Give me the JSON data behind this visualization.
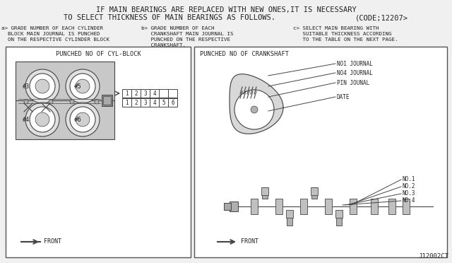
{
  "bg_color": "#f0f0f0",
  "line_color": "#444444",
  "text_color": "#222222",
  "title_line1": "IF MAIN BEARINGS ARE REPLACED WITH NEW ONES,IT IS NECESSARY",
  "title_line2": "TO SELECT THICKNESS OF MAIN BEARINGS AS FOLLOWS.",
  "code_text": "(CODE;12207>",
  "sub_a_line1": "a> GRADE NUMBER OF EACH CYLINDER",
  "sub_a_line2": "  BLOCK MAIN JOURNAL IS PUNCHED",
  "sub_a_line3": "  ON THE RESPECTIVE CYLINDER BLOCK",
  "sub_b_line1": "b> GRADE NUMBER OF EACH",
  "sub_b_line2": "   CRANKSHAFT MAIN JOURNAL IS",
  "sub_b_line3": "   PUNCHED ON THE RESPECTIVE",
  "sub_b_line4": "   CRANKSHAFT.",
  "sub_c_line1": "c> SELECT MAIN BEARING WITH",
  "sub_c_line2": "   SUITABLE THICKNESS ACCORDING",
  "sub_c_line3": "   TO THE TABLE ON THE NEXT PAGE.",
  "left_panel_title": "PUNCHED NO OF CYL-BLOCK",
  "right_panel_title": "PUNCHED NO OF CRANKSHAFT",
  "bottom_right": "J12002CT",
  "grid_row1": [
    "1",
    "2",
    "3",
    "4",
    "",
    ""
  ],
  "grid_row2": [
    "1",
    "2",
    "3",
    "4",
    "5",
    "6"
  ],
  "journal_labels": [
    "NO1 JOURNAL",
    "NO4 JOURNAL",
    "PIN JOUNAL",
    "DATE"
  ],
  "shaft_labels": [
    "NO.1",
    "NO.2",
    "NO.3",
    "NO.4"
  ]
}
